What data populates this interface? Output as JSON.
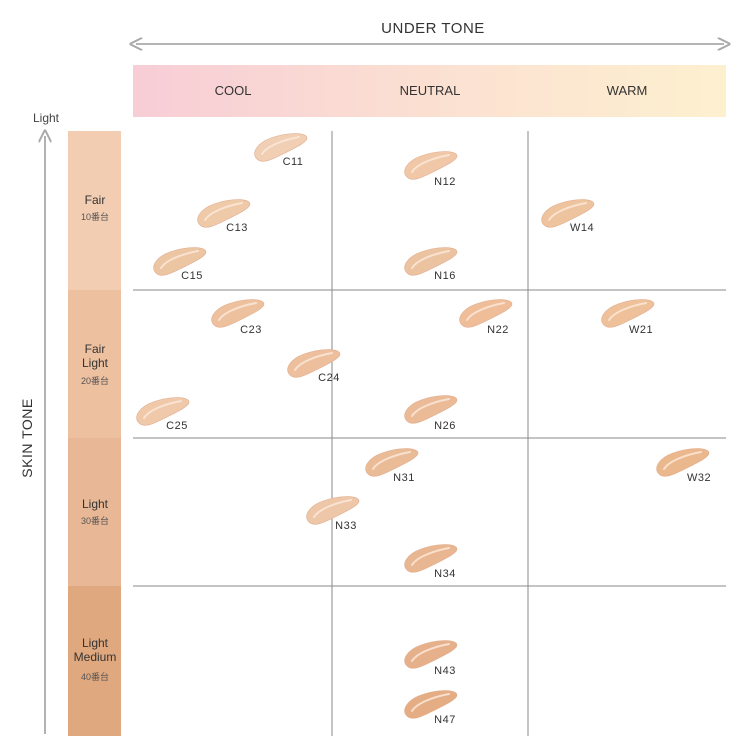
{
  "undertone": {
    "title": "UNDER TONE",
    "columns": [
      "COOL",
      "NEUTRAL",
      "WARM"
    ]
  },
  "skintone": {
    "title": "SKIN TONE",
    "light_label": "Light",
    "rows": [
      {
        "lines": [
          "Fair"
        ],
        "sub": "10番台",
        "color": "#f3cdb2"
      },
      {
        "lines": [
          "Fair",
          "Light"
        ],
        "sub": "20番台",
        "color": "#edc0a0"
      },
      {
        "lines": [
          "Light"
        ],
        "sub": "30番台",
        "color": "#e8b896"
      },
      {
        "lines": [
          "Light",
          "Medium"
        ],
        "sub": "40番台",
        "color": "#e0a87e"
      }
    ]
  },
  "swatches": [
    {
      "code": "C11",
      "color": "#f0cfb4"
    },
    {
      "code": "C13",
      "color": "#eecaa9"
    },
    {
      "code": "C15",
      "color": "#ecc5a2"
    },
    {
      "code": "N12",
      "color": "#f0c8a8"
    },
    {
      "code": "N16",
      "color": "#ecc3a1"
    },
    {
      "code": "W14",
      "color": "#edc49e"
    },
    {
      "code": "C23",
      "color": "#eec19e"
    },
    {
      "code": "C24",
      "color": "#edbf9c"
    },
    {
      "code": "C25",
      "color": "#f0c8aa"
    },
    {
      "code": "N22",
      "color": "#efbe99"
    },
    {
      "code": "N26",
      "color": "#ebbb98"
    },
    {
      "code": "W21",
      "color": "#eec19a"
    },
    {
      "code": "N31",
      "color": "#eabb97"
    },
    {
      "code": "N33",
      "color": "#eec6a8"
    },
    {
      "code": "N34",
      "color": "#e8b690"
    },
    {
      "code": "W32",
      "color": "#eab88c"
    },
    {
      "code": "N43",
      "color": "#e6b18a"
    },
    {
      "code": "N47",
      "color": "#e4ad84"
    }
  ]
}
